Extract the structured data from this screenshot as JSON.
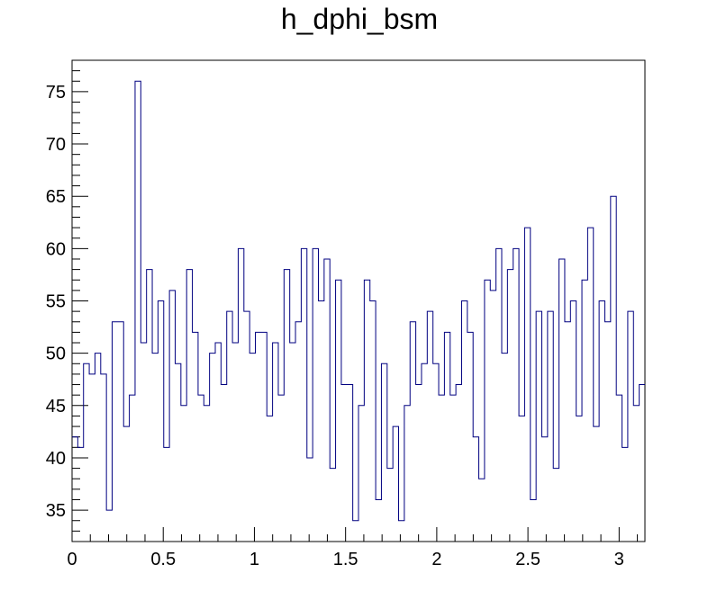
{
  "chart_data": {
    "type": "histogram",
    "title": "h_dphi_bsm",
    "xlabel": "",
    "ylabel": "",
    "xlim": [
      0,
      3.1416
    ],
    "ylim": [
      32,
      78
    ],
    "x_ticks": [
      "0",
      "0.5",
      "1",
      "1.5",
      "2",
      "2.5",
      "3"
    ],
    "y_ticks": [
      "35",
      "40",
      "45",
      "50",
      "55",
      "60",
      "65",
      "70",
      "75"
    ],
    "grid": false,
    "line_color": "#000080",
    "bin_count": 100,
    "series": [
      {
        "values": [
          42,
          41,
          49,
          48,
          50,
          48,
          35,
          53,
          53,
          43,
          46,
          76,
          51,
          58,
          50,
          55,
          41,
          56,
          49,
          45,
          58,
          52,
          46,
          45,
          50,
          51,
          47,
          54,
          51,
          60,
          54,
          50,
          52,
          52,
          44,
          51,
          46,
          58,
          51,
          53,
          60,
          40,
          60,
          55,
          59,
          39,
          57,
          47,
          47,
          34,
          45,
          57,
          55,
          36,
          49,
          39,
          43,
          34,
          45,
          53,
          47,
          49,
          54,
          49,
          46,
          52,
          46,
          47,
          55,
          52,
          42,
          38,
          57,
          56,
          60,
          50,
          58,
          60,
          44,
          62,
          36,
          54,
          42,
          54,
          39,
          59,
          53,
          55,
          44,
          57,
          62,
          43,
          55,
          53,
          65,
          46,
          41,
          54,
          45,
          47
        ]
      }
    ]
  }
}
